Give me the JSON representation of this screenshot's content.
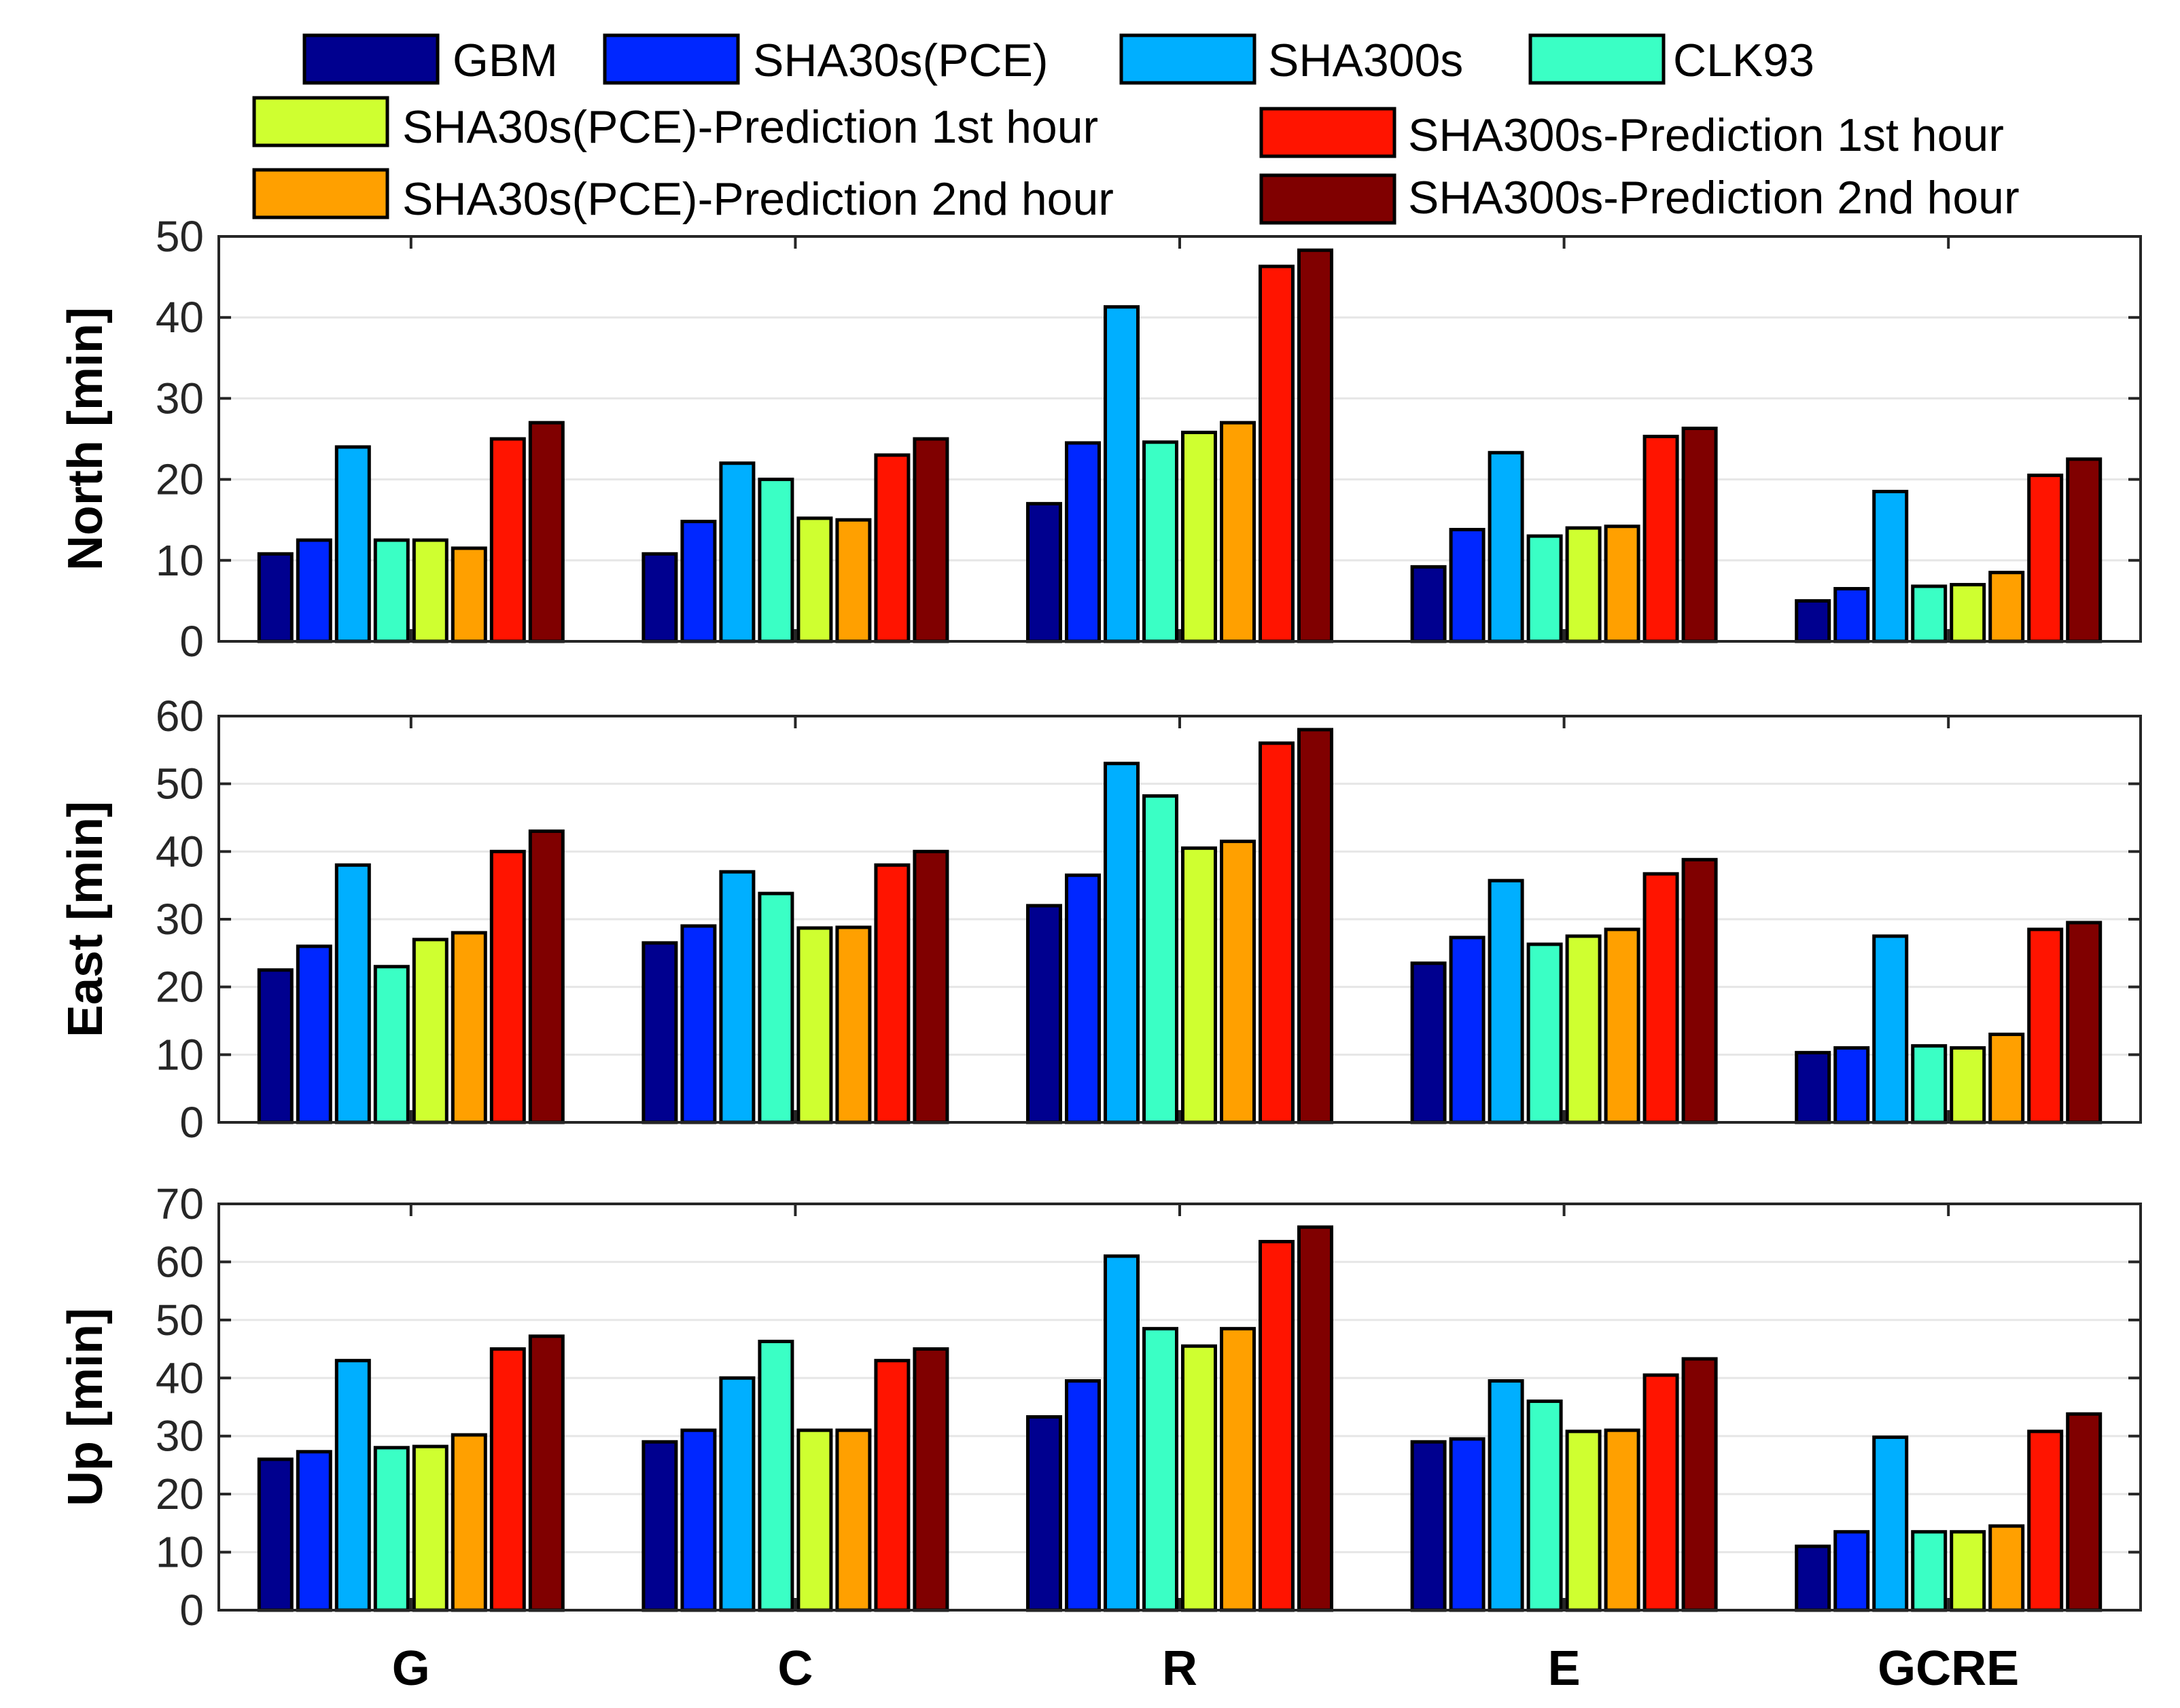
{
  "chart_data": [
    {
      "type": "bar",
      "ylabel": "North [min]",
      "ylim": [
        0,
        50
      ],
      "yticks": [
        0,
        10,
        20,
        30,
        40,
        50
      ],
      "categories": [
        "G",
        "C",
        "R",
        "E",
        "GCRE"
      ],
      "series": [
        {
          "name": "GBM",
          "values": [
            10.8,
            10.8,
            17,
            9.2,
            5
          ]
        },
        {
          "name": "SHA30s(PCE)",
          "values": [
            12.5,
            14.8,
            24.5,
            13.8,
            6.5
          ]
        },
        {
          "name": "SHA300s",
          "values": [
            24,
            22,
            41.3,
            23.3,
            18.5
          ]
        },
        {
          "name": "CLK93",
          "values": [
            12.5,
            20,
            24.6,
            13,
            6.8
          ]
        },
        {
          "name": "SHA30s(PCE)-Prediction 1st hour",
          "values": [
            12.5,
            15.2,
            25.8,
            14,
            7
          ]
        },
        {
          "name": "SHA30s(PCE)-Prediction 2nd hour",
          "values": [
            11.5,
            15,
            27,
            14.2,
            8.5
          ]
        },
        {
          "name": "SHA300s-Prediction 1st hour",
          "values": [
            25,
            23,
            46.3,
            25.3,
            20.5
          ]
        },
        {
          "name": "SHA300s-Prediction 2nd hour",
          "values": [
            27,
            25,
            48.3,
            26.3,
            22.5
          ]
        }
      ]
    },
    {
      "type": "bar",
      "ylabel": "East [min]",
      "ylim": [
        0,
        60
      ],
      "yticks": [
        0,
        10,
        20,
        30,
        40,
        50,
        60
      ],
      "categories": [
        "G",
        "C",
        "R",
        "E",
        "GCRE"
      ],
      "series": [
        {
          "name": "GBM",
          "values": [
            22.5,
            26.5,
            32,
            23.5,
            10.3
          ]
        },
        {
          "name": "SHA30s(PCE)",
          "values": [
            26,
            29,
            36.5,
            27.3,
            11
          ]
        },
        {
          "name": "SHA300s",
          "values": [
            38,
            37,
            53,
            35.7,
            27.5
          ]
        },
        {
          "name": "CLK93",
          "values": [
            23,
            33.8,
            48.2,
            26.3,
            11.3
          ]
        },
        {
          "name": "SHA30s(PCE)-Prediction 1st hour",
          "values": [
            27,
            28.7,
            40.5,
            27.5,
            11
          ]
        },
        {
          "name": "SHA30s(PCE)-Prediction 2nd hour",
          "values": [
            28,
            28.8,
            41.5,
            28.5,
            13
          ]
        },
        {
          "name": "SHA300s-Prediction 1st hour",
          "values": [
            40,
            38,
            56,
            36.7,
            28.5
          ]
        },
        {
          "name": "SHA300s-Prediction 2nd hour",
          "values": [
            43,
            40,
            58,
            38.8,
            29.5
          ]
        }
      ]
    },
    {
      "type": "bar",
      "ylabel": "Up [min]",
      "ylim": [
        0,
        70
      ],
      "yticks": [
        0,
        10,
        20,
        30,
        40,
        50,
        60,
        70
      ],
      "categories": [
        "G",
        "C",
        "R",
        "E",
        "GCRE"
      ],
      "series": [
        {
          "name": "GBM",
          "values": [
            26,
            29,
            33.3,
            29,
            11
          ]
        },
        {
          "name": "SHA30s(PCE)",
          "values": [
            27.3,
            31,
            39.5,
            29.5,
            13.5
          ]
        },
        {
          "name": "SHA300s",
          "values": [
            43,
            40,
            61,
            39.5,
            29.8
          ]
        },
        {
          "name": "CLK93",
          "values": [
            28,
            46.3,
            48.5,
            36,
            13.5
          ]
        },
        {
          "name": "SHA30s(PCE)-Prediction 1st hour",
          "values": [
            28.2,
            31,
            45.5,
            30.8,
            13.5
          ]
        },
        {
          "name": "SHA30s(PCE)-Prediction 2nd hour",
          "values": [
            30.2,
            31,
            48.5,
            31,
            14.5
          ]
        },
        {
          "name": "SHA300s-Prediction 1st hour",
          "values": [
            45,
            43,
            63.5,
            40.5,
            30.8
          ]
        },
        {
          "name": "SHA300s-Prediction 2nd hour",
          "values": [
            47.2,
            45,
            66,
            43.3,
            33.8
          ]
        }
      ]
    }
  ],
  "legend": [
    {
      "name": "GBM",
      "color": "#00008F"
    },
    {
      "name": "SHA30s(PCE)",
      "color": "#0027FF"
    },
    {
      "name": "SHA300s",
      "color": "#00AFFF"
    },
    {
      "name": "CLK93",
      "color": "#3AFFC5"
    },
    {
      "name": "SHA30s(PCE)-Prediction 1st hour",
      "color": "#CFFF30"
    },
    {
      "name": "SHA30s(PCE)-Prediction 2nd hour",
      "color": "#FFA000"
    },
    {
      "name": "SHA300s-Prediction 1st hour",
      "color": "#FF1400"
    },
    {
      "name": "SHA300s-Prediction 2nd hour",
      "color": "#800000"
    }
  ]
}
